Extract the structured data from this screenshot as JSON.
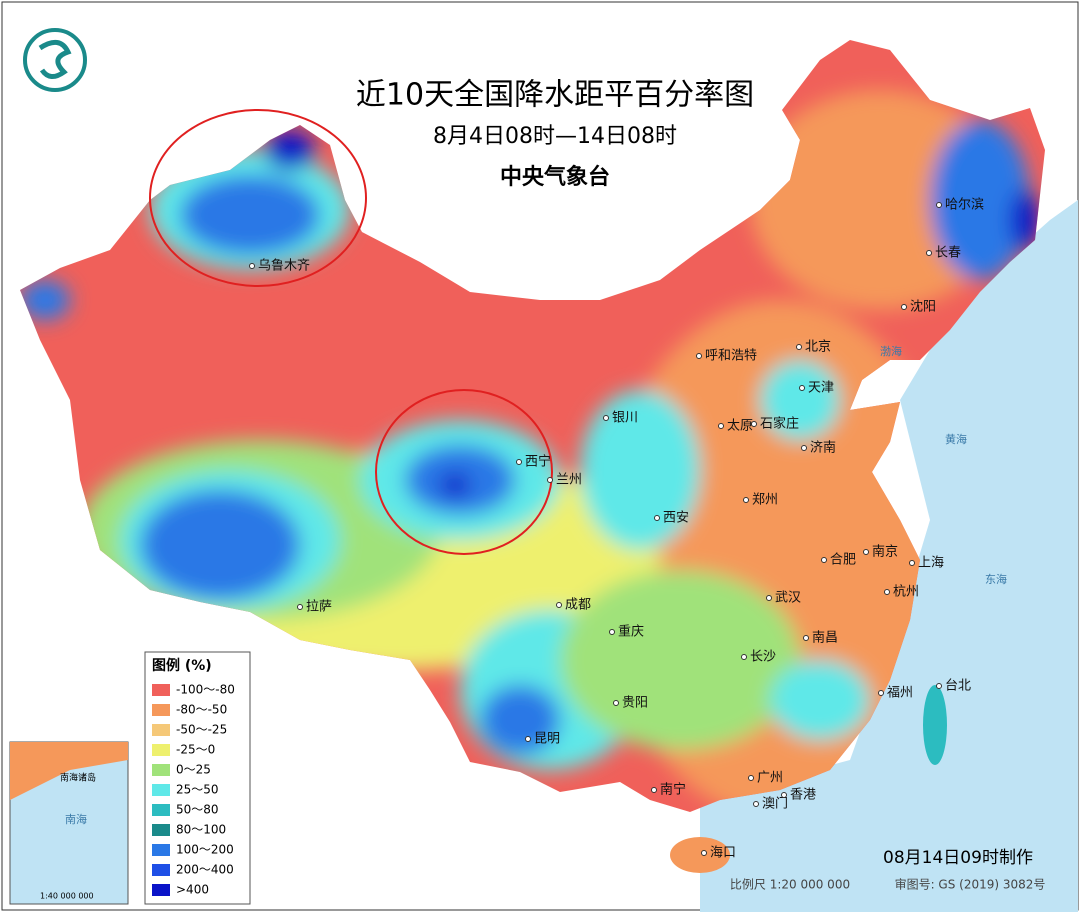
{
  "title": "近10天全国降水距平百分率图",
  "subtitle": "8月4日08时—14日08时",
  "agency": "中央气象台",
  "legend": {
    "title": "图例 (%)",
    "items": [
      {
        "label": "-100～-80",
        "color": "#f0605a"
      },
      {
        "label": "-80～-50",
        "color": "#f5985a"
      },
      {
        "label": "-50～-25",
        "color": "#f5c878"
      },
      {
        "label": "-25～0",
        "color": "#eef06e"
      },
      {
        "label": "0～25",
        "color": "#a0e27a"
      },
      {
        "label": "25～50",
        "color": "#5fe8e8"
      },
      {
        "label": "50～80",
        "color": "#2cbcc0"
      },
      {
        "label": "80～100",
        "color": "#1a8a8a"
      },
      {
        "label": "100～200",
        "color": "#2a78e6"
      },
      {
        "label": "200～400",
        "color": "#1e4fe6"
      },
      {
        "label": ">400",
        "color": "#0a14c8"
      }
    ]
  },
  "cities": [
    "乌鲁木齐",
    "哈尔滨",
    "长春",
    "沈阳",
    "北京",
    "呼和浩特",
    "天津",
    "石家庄",
    "太原",
    "银川",
    "济南",
    "西宁",
    "兰州",
    "郑州",
    "西安",
    "合肥",
    "南京",
    "上海",
    "杭州",
    "武汉",
    "拉萨",
    "成都",
    "重庆",
    "南昌",
    "长沙",
    "福州",
    "台北",
    "贵阳",
    "昆明",
    "南宁",
    "广州",
    "澳门",
    "香港",
    "海口"
  ],
  "seas": [
    "渤海",
    "黄海",
    "东海",
    "南海"
  ],
  "footer": {
    "made": "08月14日09时制作",
    "scale": "比例尺 1:20 000 000",
    "review": "审图号: GS (2019) 3082号"
  },
  "inset": {
    "label": "南海诸岛",
    "scale": "1:40 000 000"
  }
}
